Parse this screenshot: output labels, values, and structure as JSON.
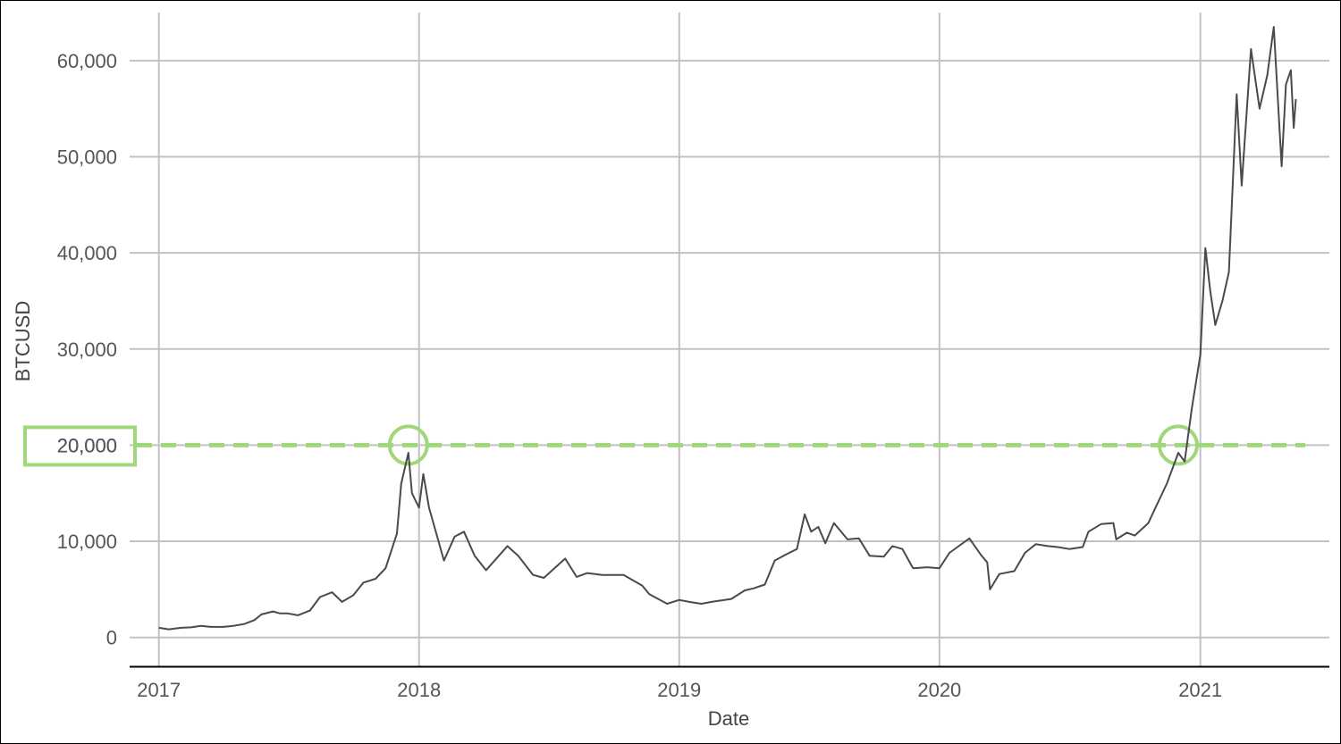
{
  "chart_data": {
    "type": "line",
    "title": "",
    "xlabel": "Date",
    "ylabel": "BTCUSD",
    "x_ticks": [
      "2017",
      "2018",
      "2019",
      "2020",
      "2021"
    ],
    "y_ticks": [
      "0",
      "10,000",
      "20,000",
      "30,000",
      "40,000",
      "50,000",
      "60,000"
    ],
    "xlim": [
      "2016-11-21",
      "2021-07-01"
    ],
    "ylim": [
      -3000,
      65000
    ],
    "grid": true,
    "highlight_value_label": "20,000",
    "series": [
      {
        "x": [
          "2017-01-01",
          "2017-01-15",
          "2017-02-01",
          "2017-02-15",
          "2017-03-01",
          "2017-03-15",
          "2017-04-01",
          "2017-04-15",
          "2017-05-01",
          "2017-05-15",
          "2017-05-25",
          "2017-06-10",
          "2017-06-20",
          "2017-07-01",
          "2017-07-15",
          "2017-08-01",
          "2017-08-15",
          "2017-09-01",
          "2017-09-15",
          "2017-10-01",
          "2017-10-15",
          "2017-11-01",
          "2017-11-15",
          "2017-12-01",
          "2017-12-07",
          "2017-12-17",
          "2017-12-22",
          "2018-01-01",
          "2018-01-07",
          "2018-01-15",
          "2018-02-05",
          "2018-02-20",
          "2018-03-05",
          "2018-03-20",
          "2018-04-05",
          "2018-05-05",
          "2018-05-20",
          "2018-06-10",
          "2018-06-25",
          "2018-07-25",
          "2018-08-10",
          "2018-08-25",
          "2018-09-15",
          "2018-10-15",
          "2018-11-10",
          "2018-11-20",
          "2018-12-15",
          "2019-01-01",
          "2019-01-15",
          "2019-02-01",
          "2019-02-15",
          "2019-03-15",
          "2019-04-03",
          "2019-04-15",
          "2019-05-01",
          "2019-05-15",
          "2019-05-30",
          "2019-06-15",
          "2019-06-26",
          "2019-07-05",
          "2019-07-15",
          "2019-07-25",
          "2019-08-06",
          "2019-08-25",
          "2019-09-10",
          "2019-09-25",
          "2019-10-15",
          "2019-10-27",
          "2019-11-10",
          "2019-11-25",
          "2019-12-15",
          "2020-01-01",
          "2020-01-15",
          "2020-02-12",
          "2020-02-28",
          "2020-03-08",
          "2020-03-12",
          "2020-03-25",
          "2020-04-15",
          "2020-04-30",
          "2020-05-15",
          "2020-06-01",
          "2020-06-15",
          "2020-07-01",
          "2020-07-20",
          "2020-07-28",
          "2020-08-15",
          "2020-09-01",
          "2020-09-05",
          "2020-09-20",
          "2020-10-01",
          "2020-10-20",
          "2020-11-01",
          "2020-11-15",
          "2020-12-01",
          "2020-12-10",
          "2020-12-20",
          "2021-01-01",
          "2021-01-08",
          "2021-01-15",
          "2021-01-22",
          "2021-02-01",
          "2021-02-10",
          "2021-02-21",
          "2021-02-28",
          "2021-03-13",
          "2021-03-25",
          "2021-04-05",
          "2021-04-14",
          "2021-04-25",
          "2021-05-01",
          "2021-05-08",
          "2021-05-12",
          "2021-05-15"
        ],
        "values": [
          1000,
          850,
          1000,
          1050,
          1200,
          1100,
          1100,
          1200,
          1400,
          1800,
          2400,
          2700,
          2500,
          2500,
          2300,
          2800,
          4200,
          4700,
          3700,
          4400,
          5700,
          6100,
          7200,
          10800,
          16000,
          19200,
          15000,
          13500,
          17000,
          13500,
          8000,
          10500,
          11000,
          8500,
          7000,
          9500,
          8500,
          6500,
          6200,
          8200,
          6300,
          6700,
          6500,
          6500,
          5400,
          4500,
          3500,
          3900,
          3700,
          3500,
          3700,
          4000,
          4900,
          5100,
          5500,
          8000,
          8600,
          9200,
          12800,
          11000,
          11500,
          9800,
          11900,
          10200,
          10300,
          8500,
          8400,
          9500,
          9200,
          7200,
          7300,
          7200,
          8800,
          10300,
          8600,
          7800,
          5000,
          6600,
          6900,
          8800,
          9700,
          9500,
          9400,
          9200,
          9400,
          11000,
          11800,
          11900,
          10200,
          10900,
          10600,
          11900,
          13800,
          16000,
          19200,
          18300,
          23800,
          29400,
          40500,
          36000,
          32500,
          35000,
          38000,
          56500,
          47000,
          61200,
          55000,
          58500,
          63500,
          49000,
          57500,
          59000,
          53000,
          56000
        ]
      }
    ]
  }
}
